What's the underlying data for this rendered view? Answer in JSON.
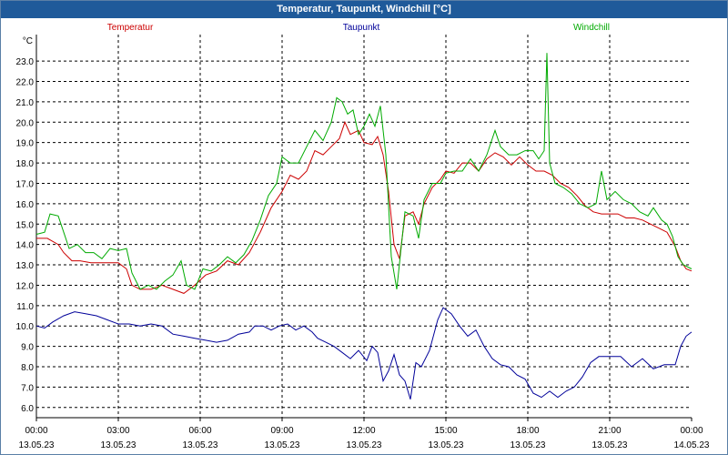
{
  "window": {
    "title": "Temperatur, Taupunkt, Windchill [°C]"
  },
  "chart_data": {
    "type": "line",
    "title": "Temperatur, Taupunkt, Windchill [°C]",
    "ylabel": "°C",
    "ylim": [
      5.5,
      24.3
    ],
    "xlim": [
      0,
      24
    ],
    "yticks": [
      6.0,
      7.0,
      8.0,
      9.0,
      10.0,
      11.0,
      12.0,
      13.0,
      14.0,
      15.0,
      16.0,
      17.0,
      18.0,
      19.0,
      20.0,
      21.0,
      22.0,
      23.0
    ],
    "xticks": [
      {
        "x": 0,
        "time": "00:00",
        "date": "13.05.23"
      },
      {
        "x": 3,
        "time": "03:00",
        "date": "13.05.23"
      },
      {
        "x": 6,
        "time": "06:00",
        "date": "13.05.23"
      },
      {
        "x": 9,
        "time": "09:00",
        "date": "13.05.23"
      },
      {
        "x": 12,
        "time": "12:00",
        "date": "13.05.23"
      },
      {
        "x": 15,
        "time": "15:00",
        "date": "13.05.23"
      },
      {
        "x": 18,
        "time": "18:00",
        "date": "13.05.23"
      },
      {
        "x": 21,
        "time": "21:00",
        "date": "13.05.23"
      },
      {
        "x": 24,
        "time": "00:00",
        "date": "14.05.23"
      }
    ],
    "grid": true,
    "legend_position": "top",
    "series": [
      {
        "name": "Temperatur",
        "color": "#cc0000",
        "points": [
          [
            0,
            14.3
          ],
          [
            0.4,
            14.3
          ],
          [
            0.8,
            14.0
          ],
          [
            1.0,
            13.6
          ],
          [
            1.3,
            13.2
          ],
          [
            1.6,
            13.2
          ],
          [
            2.0,
            13.1
          ],
          [
            2.5,
            13.1
          ],
          [
            3.0,
            13.1
          ],
          [
            3.3,
            12.8
          ],
          [
            3.5,
            12.0
          ],
          [
            3.8,
            11.8
          ],
          [
            4.2,
            11.8
          ],
          [
            4.6,
            12.0
          ],
          [
            5.0,
            11.8
          ],
          [
            5.4,
            11.6
          ],
          [
            5.8,
            12.0
          ],
          [
            6.2,
            12.5
          ],
          [
            6.6,
            12.7
          ],
          [
            7.0,
            13.2
          ],
          [
            7.4,
            13.0
          ],
          [
            7.8,
            13.6
          ],
          [
            8.2,
            14.6
          ],
          [
            8.6,
            15.8
          ],
          [
            9.0,
            16.6
          ],
          [
            9.3,
            17.4
          ],
          [
            9.6,
            17.2
          ],
          [
            9.9,
            17.6
          ],
          [
            10.2,
            18.6
          ],
          [
            10.5,
            18.4
          ],
          [
            10.8,
            18.8
          ],
          [
            11.1,
            19.2
          ],
          [
            11.3,
            20.0
          ],
          [
            11.5,
            19.4
          ],
          [
            11.8,
            19.6
          ],
          [
            12.0,
            19.0
          ],
          [
            12.3,
            18.9
          ],
          [
            12.5,
            19.3
          ],
          [
            12.7,
            18.4
          ],
          [
            12.9,
            16.6
          ],
          [
            13.1,
            14.0
          ],
          [
            13.3,
            13.3
          ],
          [
            13.5,
            15.4
          ],
          [
            13.8,
            15.6
          ],
          [
            14.0,
            15.0
          ],
          [
            14.2,
            16.0
          ],
          [
            14.5,
            16.8
          ],
          [
            14.8,
            17.2
          ],
          [
            15.0,
            17.6
          ],
          [
            15.3,
            17.5
          ],
          [
            15.6,
            18.0
          ],
          [
            15.9,
            18.0
          ],
          [
            16.2,
            17.6
          ],
          [
            16.5,
            18.2
          ],
          [
            16.8,
            18.5
          ],
          [
            17.1,
            18.3
          ],
          [
            17.4,
            17.9
          ],
          [
            17.7,
            18.3
          ],
          [
            18.0,
            17.9
          ],
          [
            18.3,
            17.6
          ],
          [
            18.6,
            17.6
          ],
          [
            18.9,
            17.4
          ],
          [
            19.2,
            17.0
          ],
          [
            19.5,
            16.8
          ],
          [
            19.8,
            16.4
          ],
          [
            20.1,
            15.9
          ],
          [
            20.4,
            15.6
          ],
          [
            20.7,
            15.5
          ],
          [
            21.0,
            15.5
          ],
          [
            21.3,
            15.5
          ],
          [
            21.6,
            15.3
          ],
          [
            21.9,
            15.3
          ],
          [
            22.2,
            15.2
          ],
          [
            22.5,
            15.0
          ],
          [
            22.8,
            14.8
          ],
          [
            23.1,
            14.6
          ],
          [
            23.4,
            13.9
          ],
          [
            23.6,
            13.2
          ],
          [
            23.8,
            12.8
          ],
          [
            24.0,
            12.7
          ]
        ]
      },
      {
        "name": "Taupunkt",
        "color": "#000099",
        "points": [
          [
            0,
            10.0
          ],
          [
            0.3,
            9.9
          ],
          [
            0.6,
            10.2
          ],
          [
            1.0,
            10.5
          ],
          [
            1.4,
            10.7
          ],
          [
            1.8,
            10.6
          ],
          [
            2.2,
            10.5
          ],
          [
            2.6,
            10.3
          ],
          [
            3.0,
            10.1
          ],
          [
            3.4,
            10.1
          ],
          [
            3.8,
            10.0
          ],
          [
            4.2,
            10.1
          ],
          [
            4.6,
            10.0
          ],
          [
            5.0,
            9.6
          ],
          [
            5.4,
            9.5
          ],
          [
            5.8,
            9.4
          ],
          [
            6.2,
            9.3
          ],
          [
            6.6,
            9.2
          ],
          [
            7.0,
            9.3
          ],
          [
            7.4,
            9.6
          ],
          [
            7.8,
            9.7
          ],
          [
            8.0,
            10.0
          ],
          [
            8.3,
            10.0
          ],
          [
            8.6,
            9.8
          ],
          [
            8.9,
            10.0
          ],
          [
            9.2,
            10.1
          ],
          [
            9.5,
            9.8
          ],
          [
            9.8,
            10.0
          ],
          [
            10.1,
            9.7
          ],
          [
            10.3,
            9.4
          ],
          [
            10.6,
            9.2
          ],
          [
            10.9,
            9.0
          ],
          [
            11.2,
            8.7
          ],
          [
            11.5,
            8.4
          ],
          [
            11.8,
            8.8
          ],
          [
            12.1,
            8.3
          ],
          [
            12.3,
            9.0
          ],
          [
            12.5,
            8.7
          ],
          [
            12.7,
            7.3
          ],
          [
            12.9,
            7.8
          ],
          [
            13.1,
            8.6
          ],
          [
            13.3,
            7.6
          ],
          [
            13.5,
            7.3
          ],
          [
            13.7,
            6.4
          ],
          [
            13.9,
            8.2
          ],
          [
            14.1,
            8.0
          ],
          [
            14.4,
            8.8
          ],
          [
            14.7,
            10.3
          ],
          [
            14.9,
            10.9
          ],
          [
            15.2,
            10.6
          ],
          [
            15.5,
            10.0
          ],
          [
            15.8,
            9.5
          ],
          [
            16.1,
            9.8
          ],
          [
            16.4,
            9.0
          ],
          [
            16.7,
            8.4
          ],
          [
            17.0,
            8.1
          ],
          [
            17.3,
            8.0
          ],
          [
            17.6,
            7.6
          ],
          [
            17.9,
            7.4
          ],
          [
            18.2,
            6.7
          ],
          [
            18.5,
            6.5
          ],
          [
            18.8,
            6.8
          ],
          [
            19.1,
            6.5
          ],
          [
            19.4,
            6.8
          ],
          [
            19.7,
            7.0
          ],
          [
            20.0,
            7.5
          ],
          [
            20.3,
            8.2
          ],
          [
            20.6,
            8.5
          ],
          [
            21.0,
            8.5
          ],
          [
            21.4,
            8.5
          ],
          [
            21.8,
            8.0
          ],
          [
            22.2,
            8.4
          ],
          [
            22.6,
            7.9
          ],
          [
            23.0,
            8.1
          ],
          [
            23.4,
            8.1
          ],
          [
            23.6,
            9.0
          ],
          [
            23.8,
            9.5
          ],
          [
            24.0,
            9.7
          ]
        ]
      },
      {
        "name": "Windchill",
        "color": "#00aa00",
        "points": [
          [
            0,
            14.5
          ],
          [
            0.3,
            14.6
          ],
          [
            0.5,
            15.5
          ],
          [
            0.8,
            15.4
          ],
          [
            1.0,
            14.6
          ],
          [
            1.2,
            13.8
          ],
          [
            1.5,
            14.0
          ],
          [
            1.8,
            13.6
          ],
          [
            2.1,
            13.6
          ],
          [
            2.4,
            13.3
          ],
          [
            2.7,
            13.8
          ],
          [
            3.0,
            13.7
          ],
          [
            3.3,
            13.8
          ],
          [
            3.5,
            12.6
          ],
          [
            3.8,
            11.8
          ],
          [
            4.1,
            12.0
          ],
          [
            4.4,
            11.8
          ],
          [
            4.7,
            12.2
          ],
          [
            5.0,
            12.5
          ],
          [
            5.3,
            13.2
          ],
          [
            5.5,
            12.0
          ],
          [
            5.8,
            11.8
          ],
          [
            6.1,
            12.8
          ],
          [
            6.4,
            12.7
          ],
          [
            6.7,
            13.0
          ],
          [
            7.0,
            13.4
          ],
          [
            7.3,
            13.1
          ],
          [
            7.6,
            13.5
          ],
          [
            7.9,
            14.2
          ],
          [
            8.2,
            15.2
          ],
          [
            8.5,
            16.4
          ],
          [
            8.8,
            17.0
          ],
          [
            9.0,
            18.3
          ],
          [
            9.3,
            18.0
          ],
          [
            9.6,
            18.0
          ],
          [
            9.9,
            18.8
          ],
          [
            10.2,
            19.6
          ],
          [
            10.5,
            19.1
          ],
          [
            10.8,
            20.0
          ],
          [
            11.0,
            21.2
          ],
          [
            11.2,
            21.0
          ],
          [
            11.4,
            20.4
          ],
          [
            11.6,
            20.6
          ],
          [
            11.8,
            19.4
          ],
          [
            12.0,
            19.8
          ],
          [
            12.2,
            20.4
          ],
          [
            12.4,
            19.8
          ],
          [
            12.6,
            20.8
          ],
          [
            12.8,
            18.4
          ],
          [
            13.0,
            13.4
          ],
          [
            13.2,
            11.8
          ],
          [
            13.5,
            15.6
          ],
          [
            13.8,
            15.4
          ],
          [
            14.0,
            14.3
          ],
          [
            14.2,
            16.2
          ],
          [
            14.5,
            17.0
          ],
          [
            14.8,
            17.0
          ],
          [
            15.0,
            17.5
          ],
          [
            15.3,
            17.6
          ],
          [
            15.6,
            17.6
          ],
          [
            15.9,
            18.2
          ],
          [
            16.2,
            17.6
          ],
          [
            16.5,
            18.4
          ],
          [
            16.8,
            19.6
          ],
          [
            17.0,
            18.8
          ],
          [
            17.3,
            18.4
          ],
          [
            17.6,
            18.4
          ],
          [
            17.9,
            18.6
          ],
          [
            18.2,
            18.6
          ],
          [
            18.4,
            18.2
          ],
          [
            18.6,
            18.6
          ],
          [
            18.7,
            23.4
          ],
          [
            18.8,
            18.0
          ],
          [
            19.0,
            17.0
          ],
          [
            19.3,
            16.8
          ],
          [
            19.6,
            16.5
          ],
          [
            19.9,
            16.0
          ],
          [
            20.2,
            15.8
          ],
          [
            20.5,
            16.0
          ],
          [
            20.7,
            17.6
          ],
          [
            20.9,
            16.2
          ],
          [
            21.2,
            16.6
          ],
          [
            21.5,
            16.2
          ],
          [
            21.8,
            16.0
          ],
          [
            22.1,
            15.6
          ],
          [
            22.4,
            15.4
          ],
          [
            22.6,
            15.8
          ],
          [
            22.9,
            15.2
          ],
          [
            23.1,
            15.0
          ],
          [
            23.3,
            14.4
          ],
          [
            23.5,
            13.4
          ],
          [
            23.7,
            13.0
          ],
          [
            24.0,
            12.8
          ]
        ]
      }
    ]
  }
}
